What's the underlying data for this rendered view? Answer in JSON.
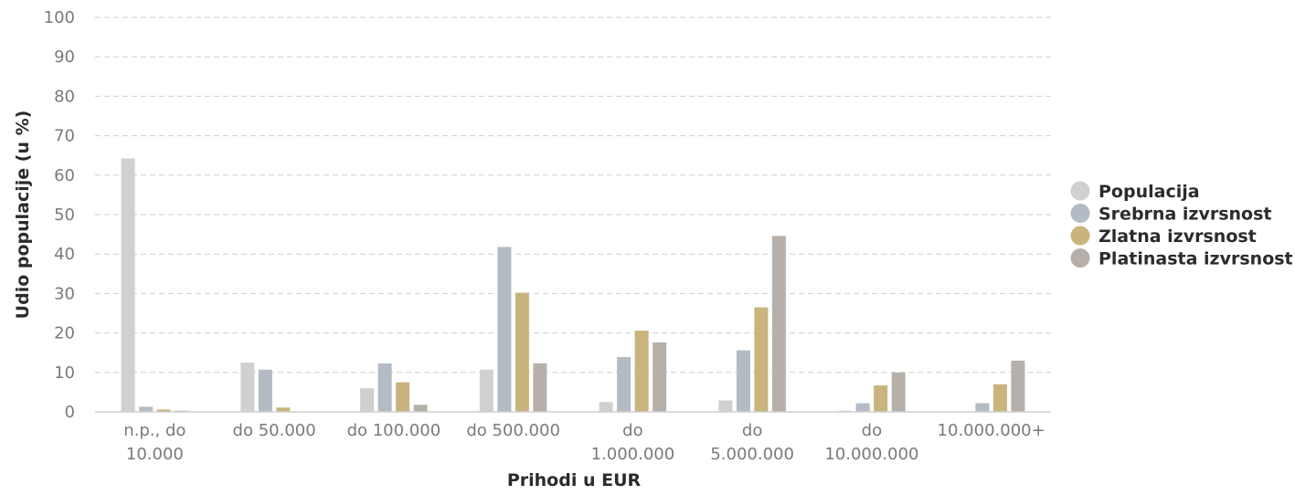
{
  "chart_data": {
    "type": "bar",
    "xlabel": "Prihodi u EUR",
    "ylabel": "Udio populacije (u %)",
    "ylim": [
      0,
      100
    ],
    "yticks": [
      0,
      10,
      20,
      30,
      40,
      50,
      60,
      70,
      80,
      90,
      100
    ],
    "grid": true,
    "legend_position": "right",
    "categories": [
      [
        "n.p., do",
        "10.000"
      ],
      [
        "do 50.000"
      ],
      [
        "do 100.000"
      ],
      [
        "do 500.000"
      ],
      [
        "do",
        "1.000.000"
      ],
      [
        "do",
        "5.000.000"
      ],
      [
        "do",
        "10.000.000"
      ],
      [
        "10.000.000+"
      ]
    ],
    "series": [
      {
        "name": "Populacija",
        "color": "#d0d0d0",
        "values": [
          64.2,
          12.5,
          6.0,
          10.7,
          2.5,
          2.9,
          0.3,
          0.1
        ]
      },
      {
        "name": "Srebrna izvrsnost",
        "color": "#b3bbc4",
        "values": [
          1.3,
          10.7,
          12.3,
          41.8,
          13.9,
          15.6,
          2.2,
          2.2
        ]
      },
      {
        "name": "Zlatna izvrsnost",
        "color": "#c9b47e",
        "values": [
          0.6,
          1.1,
          7.5,
          30.2,
          20.6,
          26.5,
          6.7,
          7.0
        ]
      },
      {
        "name": "Platinasta izvrsnost",
        "color": "#b7b0aa",
        "values": [
          0.3,
          0.1,
          1.8,
          12.3,
          17.6,
          44.6,
          10.0,
          13.0
        ]
      }
    ]
  }
}
